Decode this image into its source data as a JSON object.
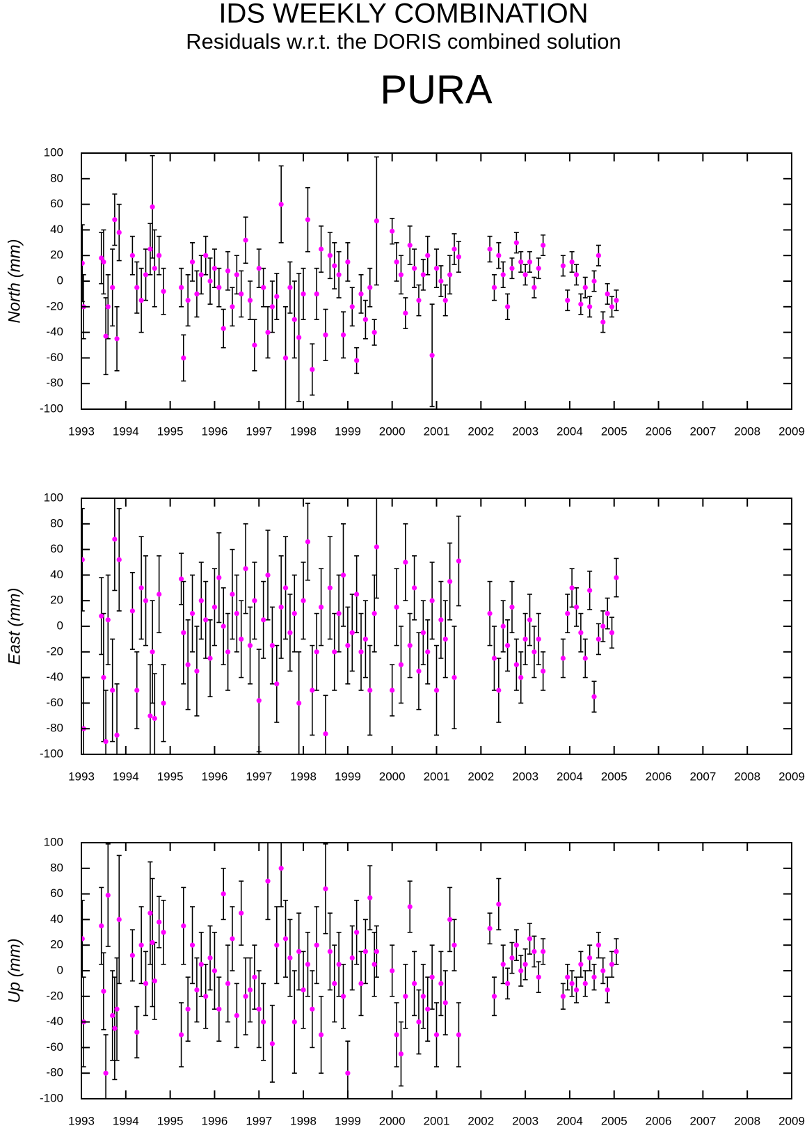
{
  "header": {
    "title": "IDS WEEKLY COMBINATION",
    "subtitle": "Residuals w.r.t. the DORIS combined solution",
    "station": "PURA"
  },
  "chart_data": [
    {
      "type": "scatter",
      "ylabel": "North (mm)",
      "xlim": [
        1993,
        2009
      ],
      "xticks": [
        1993,
        1994,
        1995,
        1996,
        1997,
        1998,
        1999,
        2000,
        2001,
        2002,
        2003,
        2004,
        2005,
        2006,
        2007,
        2008,
        2009
      ],
      "ylim": [
        -100,
        100
      ],
      "yticks": [
        -100,
        -80,
        -60,
        -40,
        -20,
        0,
        20,
        40,
        60,
        80,
        100
      ],
      "series": [
        {
          "color": "#ff00ff",
          "error_color": "#000000",
          "x": [
            1993.02,
            1993.05,
            1993.45,
            1993.5,
            1993.55,
            1993.6,
            1993.7,
            1993.75,
            1993.8,
            1993.85,
            1994.15,
            1994.25,
            1994.35,
            1994.45,
            1994.55,
            1994.6,
            1994.65,
            1994.75,
            1994.85,
            1995.25,
            1995.3,
            1995.4,
            1995.5,
            1995.6,
            1995.7,
            1995.8,
            1995.9,
            1996.0,
            1996.1,
            1996.2,
            1996.3,
            1996.4,
            1996.5,
            1996.6,
            1996.7,
            1996.8,
            1996.9,
            1997.0,
            1997.1,
            1997.2,
            1997.3,
            1997.4,
            1997.5,
            1997.6,
            1997.7,
            1997.8,
            1997.9,
            1998.0,
            1998.1,
            1998.2,
            1998.3,
            1998.4,
            1998.5,
            1998.6,
            1998.7,
            1998.8,
            1998.9,
            1999.0,
            1999.1,
            1999.2,
            1999.3,
            1999.4,
            1999.5,
            1999.6,
            1999.65,
            2000.0,
            2000.1,
            2000.2,
            2000.3,
            2000.4,
            2000.5,
            2000.6,
            2000.7,
            2000.8,
            2000.9,
            2001.0,
            2001.1,
            2001.2,
            2001.3,
            2001.4,
            2001.5,
            2002.2,
            2002.3,
            2002.4,
            2002.5,
            2002.6,
            2002.7,
            2002.8,
            2002.9,
            2003.0,
            2003.1,
            2003.2,
            2003.3,
            2003.4,
            2003.85,
            2003.95,
            2004.05,
            2004.15,
            2004.25,
            2004.35,
            2004.45,
            2004.55,
            2004.65,
            2004.75,
            2004.85,
            2004.95,
            2005.05
          ],
          "values": [
            14,
            -20,
            18,
            15,
            -43,
            -20,
            -5,
            48,
            -45,
            38,
            20,
            -5,
            -15,
            5,
            25,
            58,
            10,
            20,
            -8,
            -5,
            -60,
            -15,
            15,
            -10,
            5,
            20,
            0,
            10,
            -5,
            -37,
            8,
            -20,
            5,
            -10,
            32,
            -15,
            -50,
            10,
            -5,
            -40,
            -20,
            -12,
            60,
            -60,
            -5,
            -30,
            -44,
            -10,
            48,
            -69,
            -10,
            25,
            -42,
            20,
            12,
            5,
            -42,
            15,
            -20,
            -62,
            -10,
            -30,
            -5,
            -40,
            47,
            39,
            15,
            5,
            -25,
            28,
            10,
            -15,
            5,
            20,
            -58,
            10,
            0,
            -15,
            5,
            25,
            19,
            25,
            -5,
            20,
            5,
            -20,
            10,
            30,
            15,
            5,
            15,
            -5,
            10,
            28,
            12,
            -15,
            15,
            5,
            -18,
            -5,
            -20,
            0,
            20,
            -32,
            -10,
            -20,
            -15
          ],
          "errors": [
            30,
            25,
            20,
            25,
            30,
            25,
            30,
            20,
            25,
            22,
            15,
            20,
            25,
            20,
            20,
            40,
            30,
            15,
            18,
            15,
            18,
            20,
            15,
            18,
            15,
            15,
            18,
            15,
            15,
            15,
            15,
            15,
            15,
            18,
            18,
            15,
            20,
            15,
            15,
            20,
            20,
            18,
            30,
            40,
            20,
            30,
            50,
            20,
            25,
            20,
            20,
            18,
            20,
            18,
            18,
            18,
            18,
            15,
            15,
            10,
            15,
            15,
            15,
            10,
            50,
            10,
            15,
            15,
            12,
            15,
            15,
            12,
            12,
            15,
            40,
            15,
            12,
            12,
            15,
            12,
            12,
            10,
            10,
            10,
            10,
            10,
            8,
            8,
            8,
            8,
            8,
            8,
            8,
            8,
            8,
            8,
            8,
            8,
            8,
            8,
            8,
            8,
            8,
            8,
            8,
            8,
            8
          ]
        }
      ]
    },
    {
      "type": "scatter",
      "ylabel": "East (mm)",
      "xlim": [
        1993,
        2009
      ],
      "xticks": [
        1993,
        1994,
        1995,
        1996,
        1997,
        1998,
        1999,
        2000,
        2001,
        2002,
        2003,
        2004,
        2005,
        2006,
        2007,
        2008,
        2009
      ],
      "ylim": [
        -100,
        100
      ],
      "yticks": [
        -100,
        -80,
        -60,
        -40,
        -20,
        0,
        20,
        40,
        60,
        80,
        100
      ],
      "series": [
        {
          "color": "#ff00ff",
          "error_color": "#000000",
          "x": [
            1993.02,
            1993.05,
            1993.45,
            1993.5,
            1993.55,
            1993.6,
            1993.7,
            1993.75,
            1993.8,
            1993.85,
            1994.15,
            1994.25,
            1994.35,
            1994.45,
            1994.55,
            1994.6,
            1994.65,
            1994.75,
            1994.85,
            1995.25,
            1995.3,
            1995.4,
            1995.5,
            1995.6,
            1995.7,
            1995.8,
            1995.9,
            1996.0,
            1996.1,
            1996.2,
            1996.3,
            1996.4,
            1996.5,
            1996.6,
            1996.7,
            1996.8,
            1996.9,
            1997.0,
            1997.1,
            1997.2,
            1997.3,
            1997.4,
            1997.5,
            1997.6,
            1997.7,
            1997.8,
            1997.9,
            1998.0,
            1998.1,
            1998.2,
            1998.3,
            1998.4,
            1998.5,
            1998.6,
            1998.7,
            1998.8,
            1998.9,
            1999.0,
            1999.1,
            1999.2,
            1999.3,
            1999.4,
            1999.5,
            1999.6,
            1999.65,
            2000.0,
            2000.1,
            2000.2,
            2000.3,
            2000.4,
            2000.5,
            2000.6,
            2000.7,
            2000.8,
            2000.9,
            2001.0,
            2001.1,
            2001.2,
            2001.3,
            2001.4,
            2001.5,
            2002.2,
            2002.3,
            2002.4,
            2002.5,
            2002.6,
            2002.7,
            2002.8,
            2002.9,
            2003.0,
            2003.1,
            2003.2,
            2003.3,
            2003.4,
            2003.85,
            2003.95,
            2004.05,
            2004.15,
            2004.25,
            2004.35,
            2004.45,
            2004.55,
            2004.65,
            2004.75,
            2004.85,
            2004.95,
            2005.05
          ],
          "values": [
            52,
            -80,
            8,
            -40,
            -90,
            5,
            -50,
            68,
            -85,
            52,
            12,
            -50,
            30,
            20,
            -70,
            -20,
            -72,
            25,
            -60,
            37,
            -5,
            -30,
            10,
            -35,
            20,
            5,
            -25,
            15,
            38,
            0,
            -20,
            25,
            10,
            -10,
            45,
            -15,
            20,
            -58,
            5,
            40,
            -15,
            -45,
            15,
            30,
            -5,
            10,
            -60,
            20,
            66,
            -50,
            -20,
            15,
            -84,
            30,
            -20,
            10,
            40,
            -15,
            -5,
            25,
            -20,
            -10,
            -50,
            10,
            62,
            -50,
            15,
            -30,
            50,
            -15,
            30,
            -35,
            -5,
            -20,
            20,
            -50,
            5,
            -10,
            35,
            -40,
            51,
            10,
            -25,
            -50,
            0,
            -15,
            15,
            -30,
            -40,
            -10,
            5,
            -20,
            -10,
            -35,
            -25,
            10,
            30,
            15,
            -5,
            -25,
            28,
            -55,
            -10,
            0,
            10,
            -5,
            38
          ],
          "errors": [
            40,
            40,
            30,
            50,
            40,
            35,
            40,
            40,
            40,
            40,
            30,
            30,
            40,
            35,
            40,
            40,
            35,
            30,
            30,
            20,
            40,
            35,
            30,
            35,
            30,
            30,
            30,
            30,
            35,
            30,
            30,
            35,
            30,
            30,
            35,
            30,
            30,
            40,
            30,
            35,
            30,
            30,
            40,
            40,
            30,
            30,
            40,
            30,
            30,
            35,
            30,
            30,
            30,
            40,
            30,
            30,
            40,
            30,
            30,
            30,
            30,
            30,
            35,
            30,
            40,
            20,
            30,
            30,
            30,
            25,
            25,
            30,
            25,
            25,
            30,
            35,
            30,
            30,
            30,
            40,
            35,
            25,
            25,
            25,
            20,
            20,
            20,
            20,
            20,
            20,
            20,
            20,
            20,
            15,
            15,
            15,
            15,
            15,
            15,
            15,
            15,
            12,
            12,
            12,
            12,
            12,
            15
          ]
        }
      ]
    },
    {
      "type": "scatter",
      "ylabel": "Up (mm)",
      "xlim": [
        1993,
        2009
      ],
      "xticks": [
        1993,
        1994,
        1995,
        1996,
        1997,
        1998,
        1999,
        2000,
        2001,
        2002,
        2003,
        2004,
        2005,
        2006,
        2007,
        2008,
        2009
      ],
      "ylim": [
        -100,
        100
      ],
      "yticks": [
        -100,
        -80,
        -60,
        -40,
        -20,
        0,
        20,
        40,
        60,
        80,
        100
      ],
      "series": [
        {
          "color": "#ff00ff",
          "error_color": "#000000",
          "x": [
            1993.02,
            1993.05,
            1993.45,
            1993.5,
            1993.55,
            1993.6,
            1993.7,
            1993.75,
            1993.8,
            1993.85,
            1994.15,
            1994.25,
            1994.35,
            1994.45,
            1994.55,
            1994.6,
            1994.65,
            1994.75,
            1994.85,
            1995.25,
            1995.3,
            1995.4,
            1995.5,
            1995.6,
            1995.7,
            1995.8,
            1995.9,
            1996.0,
            1996.1,
            1996.2,
            1996.3,
            1996.4,
            1996.5,
            1996.6,
            1996.7,
            1996.8,
            1996.9,
            1997.0,
            1997.1,
            1997.2,
            1997.3,
            1997.4,
            1997.5,
            1997.6,
            1997.7,
            1997.8,
            1997.9,
            1998.0,
            1998.1,
            1998.2,
            1998.3,
            1998.4,
            1998.5,
            1998.6,
            1998.7,
            1998.8,
            1998.9,
            1999.0,
            1999.1,
            1999.2,
            1999.3,
            1999.4,
            1999.5,
            1999.6,
            1999.65,
            2000.0,
            2000.1,
            2000.2,
            2000.3,
            2000.4,
            2000.5,
            2000.6,
            2000.7,
            2000.8,
            2000.9,
            2001.0,
            2001.1,
            2001.2,
            2001.3,
            2001.4,
            2001.5,
            2002.2,
            2002.3,
            2002.4,
            2002.5,
            2002.6,
            2002.7,
            2002.8,
            2002.9,
            2003.0,
            2003.1,
            2003.2,
            2003.3,
            2003.4,
            2003.85,
            2003.95,
            2004.05,
            2004.15,
            2004.25,
            2004.35,
            2004.45,
            2004.55,
            2004.65,
            2004.75,
            2004.85,
            2004.95,
            2005.05
          ],
          "values": [
            25,
            -40,
            35,
            -16,
            -80,
            59,
            -35,
            -45,
            -30,
            40,
            12,
            -48,
            20,
            -10,
            45,
            22,
            -8,
            38,
            30,
            -50,
            35,
            -30,
            20,
            -15,
            5,
            -20,
            10,
            0,
            -30,
            60,
            -10,
            25,
            -35,
            45,
            -20,
            -15,
            -5,
            -30,
            -40,
            70,
            -57,
            20,
            80,
            25,
            10,
            -40,
            15,
            -15,
            5,
            -30,
            20,
            -50,
            64,
            15,
            -10,
            5,
            -20,
            -80,
            10,
            30,
            -10,
            15,
            57,
            5,
            15,
            0,
            -50,
            -65,
            -20,
            50,
            -10,
            -40,
            -20,
            -30,
            -5,
            -50,
            -10,
            -25,
            40,
            20,
            -50,
            33,
            -20,
            52,
            5,
            -10,
            10,
            20,
            0,
            5,
            25,
            15,
            -5,
            15,
            -20,
            -5,
            -10,
            -15,
            5,
            -10,
            10,
            -5,
            20,
            0,
            -15,
            5,
            15
          ],
          "errors": [
            30,
            35,
            30,
            30,
            30,
            40,
            35,
            40,
            40,
            50,
            20,
            20,
            30,
            25,
            40,
            50,
            30,
            20,
            25,
            25,
            30,
            25,
            30,
            25,
            25,
            25,
            25,
            30,
            25,
            20,
            30,
            25,
            25,
            25,
            30,
            25,
            25,
            30,
            30,
            30,
            30,
            30,
            30,
            30,
            30,
            40,
            30,
            30,
            25,
            30,
            30,
            30,
            35,
            30,
            30,
            25,
            25,
            25,
            25,
            25,
            25,
            25,
            25,
            25,
            20,
            20,
            25,
            25,
            25,
            20,
            25,
            25,
            25,
            25,
            25,
            25,
            25,
            25,
            25,
            20,
            25,
            12,
            15,
            20,
            15,
            12,
            12,
            12,
            12,
            12,
            12,
            12,
            12,
            10,
            10,
            10,
            10,
            10,
            10,
            10,
            10,
            10,
            10,
            10,
            10,
            10,
            10
          ]
        }
      ]
    }
  ]
}
